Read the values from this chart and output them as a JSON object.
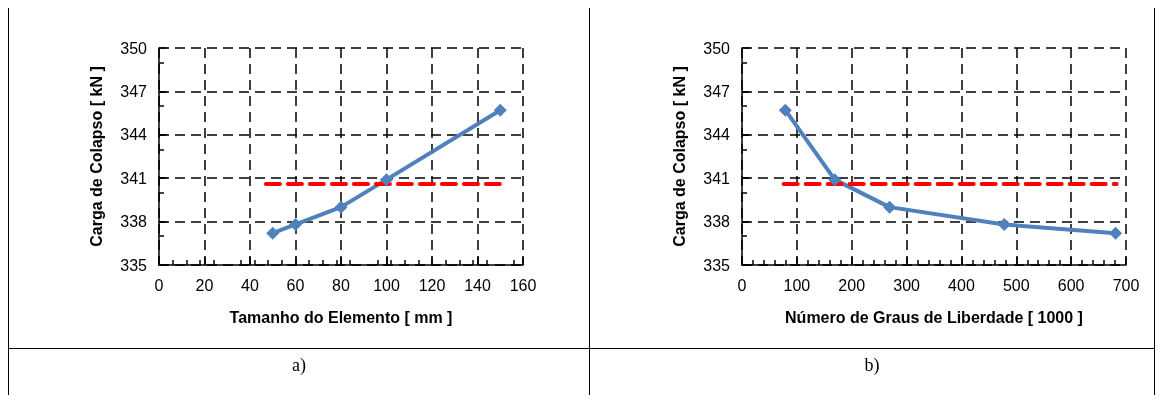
{
  "chart_data": [
    {
      "type": "line",
      "xlabel": "Tamanho do Elemento [ mm ]",
      "ylabel": "Carga de Colapso [ kN ]",
      "annotations": [
        "a)"
      ],
      "xlim": [
        0,
        160
      ],
      "xticks": [
        0,
        20,
        40,
        60,
        80,
        100,
        120,
        140,
        160
      ],
      "ylim": [
        335,
        350
      ],
      "yticks": [
        335,
        338,
        341,
        344,
        347,
        350
      ],
      "grid": true,
      "marker": "diamond",
      "line_style": "solid",
      "series": [
        {
          "color": "#4f81bd",
          "x": [
            50,
            60,
            80,
            100,
            150
          ],
          "values": [
            337.2,
            337.8,
            339.0,
            340.9,
            345.7
          ]
        },
        {
          "color": "#ff0000",
          "line_style": "dashed",
          "marker": "none",
          "x": [
            47,
            151
          ],
          "values": [
            340.6,
            340.6
          ]
        }
      ]
    },
    {
      "type": "line",
      "xlabel": "Número de Graus de Liberdade [ 1000 ]",
      "ylabel": "Carga de Colapso [ kN ]",
      "annotations": [
        "b)"
      ],
      "xlim": [
        0,
        700
      ],
      "xticks": [
        0,
        100,
        200,
        300,
        400,
        500,
        600,
        700
      ],
      "ylim": [
        335,
        350
      ],
      "yticks": [
        335,
        338,
        341,
        344,
        347,
        350
      ],
      "grid": true,
      "marker": "diamond",
      "line_style": "solid",
      "series": [
        {
          "color": "#4f81bd",
          "x": [
            79,
            169,
            269,
            478,
            681
          ],
          "values": [
            345.7,
            340.9,
            339.0,
            337.8,
            337.2
          ]
        },
        {
          "color": "#ff0000",
          "line_style": "dashed",
          "marker": "none",
          "x": [
            76,
            683
          ],
          "values": [
            340.6,
            340.6
          ]
        }
      ]
    }
  ]
}
